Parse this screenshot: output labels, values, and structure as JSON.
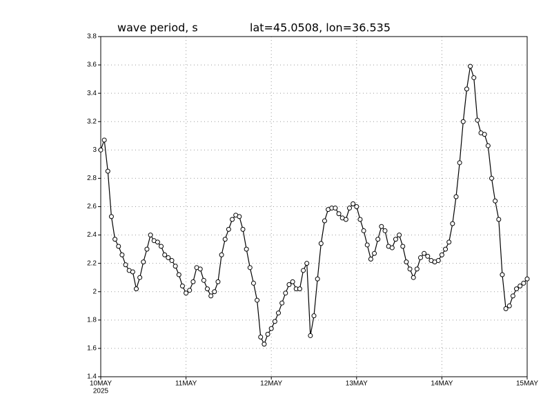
{
  "chart_data": {
    "type": "line",
    "title": "wave period, s",
    "subtitle": "lat=45.0508, lon=36.535",
    "x": [
      0,
      1,
      2,
      3,
      4,
      5,
      6,
      7,
      8,
      9,
      10,
      11,
      12,
      13,
      14,
      15,
      16,
      17,
      18,
      19,
      20,
      21,
      22,
      23,
      24,
      25,
      26,
      27,
      28,
      29,
      30,
      31,
      32,
      33,
      34,
      35,
      36,
      37,
      38,
      39,
      40,
      41,
      42,
      43,
      44,
      45,
      46,
      47,
      48,
      49,
      50,
      51,
      52,
      53,
      54,
      55,
      56,
      57,
      58,
      59,
      60,
      61,
      62,
      63,
      64,
      65,
      66,
      67,
      68,
      69,
      70,
      71,
      72,
      73,
      74,
      75,
      76,
      77,
      78,
      79,
      80,
      81,
      82,
      83,
      84,
      85,
      86,
      87,
      88,
      89,
      90,
      91,
      92,
      93,
      94,
      95,
      96,
      97,
      98,
      99,
      100,
      101,
      102,
      103,
      104,
      105,
      106,
      107,
      108,
      109,
      110,
      111,
      112,
      113,
      114,
      115,
      116,
      117,
      118,
      119,
      120
    ],
    "values": [
      3.0,
      3.07,
      2.85,
      2.53,
      2.37,
      2.32,
      2.26,
      2.19,
      2.15,
      2.14,
      2.02,
      2.1,
      2.21,
      2.3,
      2.4,
      2.36,
      2.35,
      2.32,
      2.26,
      2.24,
      2.22,
      2.18,
      2.12,
      2.04,
      1.99,
      2.01,
      2.07,
      2.17,
      2.16,
      2.08,
      2.02,
      1.97,
      2.0,
      2.07,
      2.26,
      2.37,
      2.44,
      2.51,
      2.54,
      2.53,
      2.44,
      2.3,
      2.17,
      2.06,
      1.94,
      1.68,
      1.63,
      1.7,
      1.74,
      1.79,
      1.85,
      1.92,
      1.99,
      2.05,
      2.07,
      2.02,
      2.02,
      2.15,
      2.2,
      1.69,
      1.83,
      2.09,
      2.34,
      2.5,
      2.58,
      2.59,
      2.59,
      2.55,
      2.52,
      2.51,
      2.59,
      2.62,
      2.6,
      2.51,
      2.43,
      2.33,
      2.23,
      2.27,
      2.37,
      2.46,
      2.43,
      2.32,
      2.31,
      2.37,
      2.4,
      2.32,
      2.21,
      2.16,
      2.1,
      2.16,
      2.24,
      2.27,
      2.25,
      2.22,
      2.21,
      2.22,
      2.26,
      2.3,
      2.35,
      2.48,
      2.67,
      2.91,
      3.2,
      3.43,
      3.59,
      3.51,
      3.21,
      3.12,
      3.11,
      3.03,
      2.8,
      2.64,
      2.51,
      2.12,
      1.88,
      1.9,
      1.97,
      2.02,
      2.04,
      2.06,
      2.09
    ],
    "color": "#000000",
    "xlim": [
      0,
      120
    ],
    "xticks": [
      {
        "value": 0,
        "label": "10MAY"
      },
      {
        "value": 24,
        "label": "11MAY"
      },
      {
        "value": 48,
        "label": "12MAY"
      },
      {
        "value": 72,
        "label": "13MAY"
      },
      {
        "value": 96,
        "label": "14MAY"
      },
      {
        "value": 120,
        "label": "15MAY"
      }
    ],
    "year_label": "2025",
    "ylim": [
      1.4,
      3.8
    ],
    "yticks": [
      1.4,
      1.6,
      1.8,
      2,
      2.2,
      2.4,
      2.6,
      2.8,
      3,
      3.2,
      3.4,
      3.6,
      3.8
    ],
    "grid": true
  }
}
